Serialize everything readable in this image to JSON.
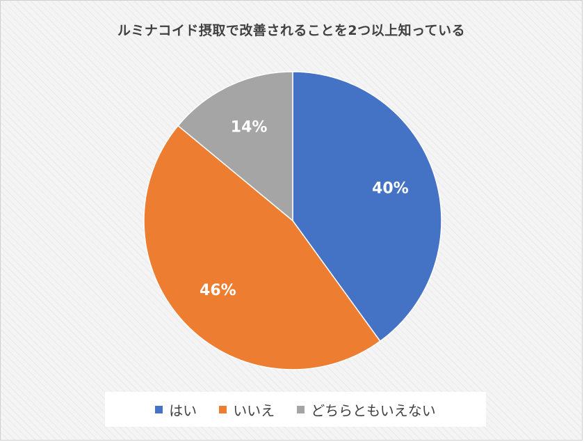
{
  "chart_data": {
    "type": "pie",
    "title": "ルミナコイド摂取で改善されることを2つ以上知っている",
    "slices": [
      {
        "label": "はい",
        "value": 40,
        "display": "40%",
        "color": "#4472c4"
      },
      {
        "label": "いいえ",
        "value": 46,
        "display": "46%",
        "color": "#ed7d31"
      },
      {
        "label": "どちらともいえない",
        "value": 14,
        "display": "14%",
        "color": "#a5a5a5"
      }
    ],
    "legend_position": "bottom"
  }
}
